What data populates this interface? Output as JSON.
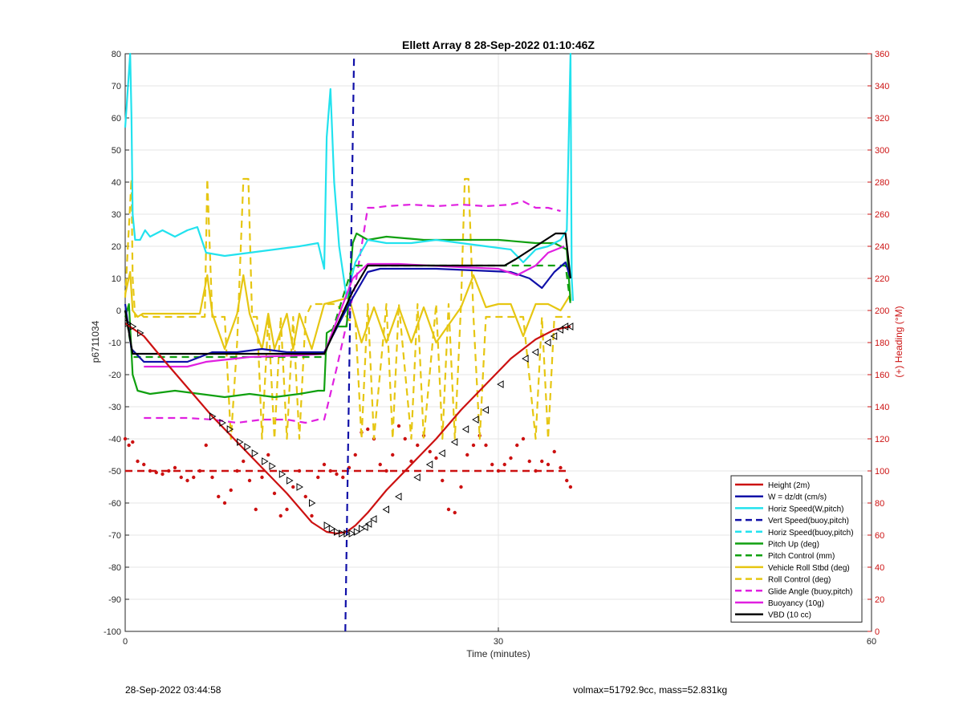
{
  "chart_data": {
    "type": "line",
    "title": "Ellett Array 8 28-Sep-2022 01:10:46Z",
    "xlabel": "Time (minutes)",
    "ylabel": "p6711034",
    "y2label": "(+) Heading (°M)",
    "xlim": [
      0,
      60
    ],
    "ylim": [
      -100,
      80
    ],
    "y2lim": [
      0,
      360
    ],
    "xticks": [
      0,
      30,
      60
    ],
    "yticks": [
      -100,
      -90,
      -80,
      -70,
      -60,
      -50,
      -40,
      -30,
      -20,
      -10,
      0,
      10,
      20,
      30,
      40,
      50,
      60,
      70,
      80
    ],
    "y2ticks": [
      0,
      20,
      40,
      60,
      80,
      100,
      120,
      140,
      160,
      180,
      200,
      220,
      240,
      260,
      280,
      300,
      320,
      340,
      360
    ],
    "grid": true,
    "legend_position": "bottom-right",
    "colors": {
      "height": "#cc1111",
      "w": "#1010a8",
      "horiz": "#22e2ee",
      "pitch": "#10a010",
      "roll": "#e6c612",
      "glide": "#e020e0",
      "buoyancy": "#e020e0",
      "vbd": "#000000",
      "right_axis": "#cc1111"
    },
    "series": [
      {
        "name": "Height (2m)",
        "color": "#cc1111",
        "dash": "solid",
        "x": [
          0,
          1.5,
          3,
          5,
          7,
          9,
          11,
          13,
          15,
          16.2,
          17,
          17.8,
          18.5,
          19.5,
          21,
          23,
          25,
          27,
          29,
          31,
          33,
          34.5,
          35.8
        ],
        "y": [
          -4,
          -8,
          -15,
          -24,
          -33,
          -41,
          -49,
          -57,
          -66,
          -69,
          -69.5,
          -69,
          -67,
          -63,
          -56,
          -48,
          -40,
          -31,
          -23,
          -15,
          -9,
          -6,
          -5
        ]
      },
      {
        "name": "W = dz/dt (cm/s)",
        "color": "#1010a8",
        "dash": "solid",
        "x": [
          0,
          0.5,
          1.5,
          3,
          5,
          7,
          9,
          11,
          13,
          15,
          16,
          18,
          19.5,
          20.5,
          22,
          25,
          28,
          31,
          32.5,
          33.5,
          34.5,
          35.4,
          35.8
        ],
        "y": [
          2,
          -12,
          -16,
          -16,
          -16,
          -13,
          -13,
          -12,
          -13,
          -13,
          -13,
          2,
          12,
          13,
          13,
          13,
          12.5,
          12,
          10,
          7,
          12,
          15,
          10
        ]
      },
      {
        "name": "Horiz Speed(W,pitch)",
        "color": "#22e2ee",
        "dash": "solid",
        "x": [
          0,
          0.4,
          0.5,
          0.6,
          0.8,
          1.2,
          1.6,
          2,
          3,
          4,
          5,
          5.8,
          6.5,
          8,
          10,
          12,
          14,
          15.5,
          16,
          16.2,
          16.5,
          16.8,
          17.2,
          17.8,
          18.5,
          19.5,
          21,
          23,
          25,
          27,
          29,
          31,
          32,
          33,
          34,
          35,
          35.5,
          35.8,
          35.9,
          36
        ],
        "y": [
          57,
          80,
          61,
          30,
          22,
          22,
          25,
          23,
          25,
          23,
          25,
          26,
          18,
          17,
          18,
          19,
          20,
          21,
          13,
          54,
          69,
          40,
          20,
          4,
          15,
          22,
          21,
          21,
          22,
          21,
          20,
          19,
          15,
          19,
          20,
          22,
          25,
          80,
          10,
          3
        ]
      },
      {
        "name": "Vert Speed(buoy,pitch)",
        "color": "#1010a8",
        "dash": "dashed",
        "x": [
          17.7,
          18.4
        ],
        "y": [
          -100,
          80
        ]
      },
      {
        "name": "Horiz Speed(buoy,pitch)",
        "color": "#22e2ee",
        "dash": "dashed",
        "x": [],
        "y": []
      },
      {
        "name": "Pitch Up (deg)",
        "color": "#10a010",
        "dash": "solid",
        "x": [
          0,
          0.3,
          0.6,
          1,
          2,
          4,
          6,
          8,
          10,
          12,
          14,
          15.5,
          16,
          16.2,
          17,
          17.8,
          18.3,
          18.6,
          19.5,
          21,
          24,
          27,
          30,
          33,
          34.5,
          35.5,
          35.8
        ],
        "y": [
          -2,
          2,
          -20,
          -25,
          -26,
          -25,
          -26,
          -27,
          -26,
          -27,
          -26,
          -25,
          -25,
          -7,
          -5,
          -5,
          21,
          24,
          22,
          23,
          22,
          22,
          22,
          21,
          21,
          19,
          3
        ]
      },
      {
        "name": "Pitch Control (mm)",
        "color": "#10a010",
        "dash": "dashed",
        "x": [
          0,
          0.6,
          16,
          16.6,
          18.3,
          35.4,
          35.8
        ],
        "y": [
          0,
          -14.5,
          -14.5,
          -7,
          14,
          14,
          2
        ]
      },
      {
        "name": "Vehicle Roll Stbd (deg)",
        "color": "#e6c612",
        "dash": "solid",
        "x": [
          0,
          0.4,
          0.6,
          1,
          1.4,
          2,
          4,
          6,
          6.6,
          7,
          8,
          9,
          9.5,
          10,
          11,
          11.5,
          12,
          13,
          13.5,
          14,
          15,
          16,
          18,
          19,
          20,
          21,
          22,
          23,
          24,
          25,
          27,
          28,
          29,
          30,
          31,
          32,
          33,
          34,
          35,
          35.8
        ],
        "y": [
          5,
          12,
          0,
          -2,
          -1,
          -1,
          -1,
          -1,
          11,
          -1,
          -12,
          -1,
          11,
          -1,
          -12,
          -1,
          -12,
          -1,
          -12,
          -1,
          -12,
          2,
          4,
          -10,
          1,
          -10,
          1,
          -10,
          1,
          -10,
          1,
          11,
          1,
          2,
          2,
          -8,
          2,
          2,
          0,
          5
        ]
      },
      {
        "name": "Roll Control (deg)",
        "color": "#e6c612",
        "dash": "dashed",
        "x": [
          0,
          0.5,
          0.6,
          0.8,
          1.2,
          1.5,
          2,
          4,
          6.4,
          6.6,
          7,
          7.5,
          8,
          8.5,
          9,
          9.5,
          9.9,
          10.2,
          10.6,
          11,
          11.5,
          12,
          12.5,
          13,
          13.5,
          14,
          14.5,
          15,
          16,
          17,
          18,
          18.5,
          19,
          19.5,
          20,
          21,
          21.5,
          22,
          23,
          23.5,
          24,
          25,
          25.5,
          26,
          26.5,
          27,
          27.3,
          27.6,
          28,
          28.5,
          29,
          30,
          31,
          32,
          33,
          33.5,
          34,
          34.5,
          35,
          35.8
        ],
        "y": [
          4,
          41,
          10,
          -2,
          -1,
          -2,
          -2,
          -2,
          -2,
          41,
          -2,
          -2,
          -2,
          -40,
          -10,
          41,
          41,
          -2,
          -2,
          -40,
          -2,
          -40,
          -2,
          -40,
          -2,
          -40,
          -2,
          2,
          2,
          2,
          -3,
          -3,
          -40,
          2,
          -40,
          2,
          -40,
          2,
          -40,
          2,
          -40,
          2,
          -40,
          2,
          -40,
          2,
          41,
          41,
          -2,
          -40,
          -2,
          -2,
          -2,
          -2,
          -40,
          -2,
          -40,
          -2,
          -2,
          -2
        ]
      },
      {
        "name": "Glide Angle (buoy,pitch)",
        "color": "#e020e0",
        "dash": "dashed",
        "x": [
          1.5,
          3,
          5,
          7,
          9,
          11,
          13,
          14.5,
          15.5,
          16,
          17,
          18.5,
          19.5,
          20,
          21,
          23,
          25,
          27,
          29,
          31,
          32,
          33,
          34,
          35
        ],
        "y": [
          -33.5,
          -33.5,
          -33.5,
          -34,
          -35,
          -34,
          -34,
          -35,
          -34,
          -34,
          -18,
          8,
          32,
          32,
          32.5,
          33,
          32.5,
          33,
          32.5,
          33,
          34,
          32,
          32,
          31
        ]
      },
      {
        "name": "Buoyancy (10g)",
        "color": "#e020e0",
        "dash": "solid",
        "x": [
          1.5,
          5,
          6.5,
          10,
          14,
          16,
          18.3,
          19.5,
          22,
          27,
          30,
          31.5,
          33,
          34,
          35.3
        ],
        "y": [
          -17.5,
          -17.5,
          -16,
          -14.5,
          -14,
          -13.5,
          10,
          14.5,
          14.5,
          13.5,
          13,
          11,
          14,
          18,
          20
        ]
      },
      {
        "name": "VBD (10 cc)",
        "color": "#000000",
        "dash": "solid",
        "x": [
          0,
          0.6,
          3,
          10,
          15,
          16,
          18.3,
          19.5,
          24,
          30.5,
          31.4,
          32.2,
          33,
          33.8,
          34.6,
          35.4,
          35.8
        ],
        "y": [
          0,
          -13.5,
          -13.5,
          -13.5,
          -13.5,
          -13.5,
          6,
          14,
          14,
          14,
          16,
          18,
          20,
          22,
          24,
          24,
          10
        ]
      }
    ],
    "heading_series": {
      "name": "Heading (right axis)",
      "color": "#cc1111",
      "axis": "right",
      "reference_line_y": -50,
      "points_x": [
        0,
        0.3,
        0.6,
        1,
        1.5,
        2,
        2.5,
        3,
        3.5,
        4,
        4.5,
        5,
        5.5,
        6,
        6.5,
        7,
        7.5,
        8,
        8.5,
        9,
        9.5,
        10,
        10.5,
        11,
        11.5,
        12,
        12.5,
        13,
        13.5,
        14,
        14.5,
        15,
        15.5,
        16,
        16.5,
        17,
        17.5,
        18,
        18.5,
        19,
        19.5,
        20,
        20.5,
        21,
        21.5,
        22,
        22.5,
        23,
        23.5,
        24,
        24.5,
        25,
        25.5,
        26,
        26.5,
        27,
        27.5,
        28,
        28.5,
        29,
        29.5,
        30,
        30.5,
        31,
        31.5,
        32,
        32.5,
        33,
        33.5,
        34,
        34.5,
        35,
        35.5,
        35.8
      ],
      "points_y": [
        -40,
        -42,
        -41,
        -47,
        -48,
        -50,
        -50.5,
        -51,
        -50,
        -49,
        -52,
        -53,
        -52,
        -50,
        -42,
        -52,
        -58,
        -60,
        -56,
        -50,
        -47,
        -53,
        -62,
        -52,
        -45,
        -57,
        -64,
        -62,
        -55,
        -50,
        -58,
        -64,
        -52,
        -48,
        -50,
        -51,
        -52,
        -49,
        -45,
        -38,
        -37,
        -40,
        -48,
        -50,
        -45,
        -36,
        -40,
        -47,
        -42,
        -39,
        -44,
        -46,
        -53,
        -62,
        -63,
        -55,
        -45,
        -42,
        -39,
        -42,
        -48,
        -50,
        -48,
        -46,
        -42,
        -40,
        -47,
        -50,
        -47,
        -48,
        -44,
        -49,
        -53,
        -55
      ]
    },
    "markers": {
      "x": [
        0.2,
        0.6,
        1.2,
        7,
        7.8,
        8.4,
        9.2,
        9.8,
        10.4,
        11.2,
        11.8,
        12.6,
        13.2,
        14,
        15,
        16.2,
        16.6,
        17,
        17.4,
        17.8,
        18.2,
        18.6,
        19,
        19.3,
        19.6,
        20,
        21,
        22,
        23.5,
        24.5,
        25.5,
        26.5,
        27.4,
        28.2,
        29,
        30.2,
        32.2,
        33,
        34,
        34.5,
        35,
        35.4,
        35.8
      ],
      "y": [
        -4,
        -5,
        -7,
        -33,
        -35,
        -37,
        -41,
        -42.5,
        -44.5,
        -47,
        -48.5,
        -51,
        -53,
        -55,
        -60,
        -67,
        -68,
        -69,
        -69.5,
        -69.5,
        -69.5,
        -69,
        -68,
        -67.5,
        -66.5,
        -65,
        -62,
        -58,
        -52,
        -48,
        -44.5,
        -41,
        -37,
        -34,
        -31,
        -23,
        -15,
        -13,
        -10,
        -8,
        -6,
        -5,
        -5
      ]
    }
  },
  "footer": {
    "left": "28-Sep-2022 03:44:58",
    "right": "volmax=51792.9cc, mass=52.831kg"
  }
}
